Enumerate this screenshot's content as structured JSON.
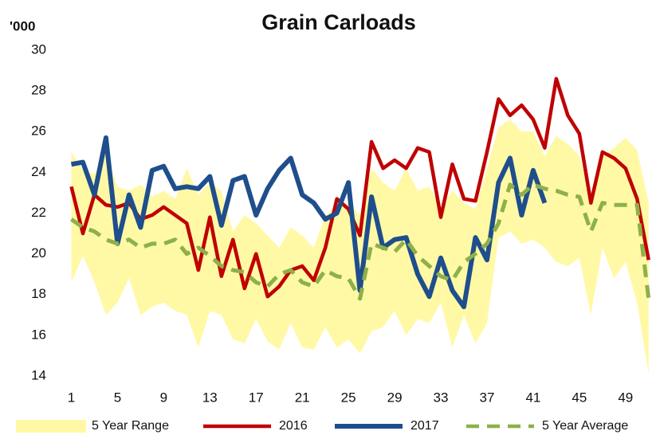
{
  "chart_data": {
    "type": "line",
    "title": "Grain Carloads",
    "y_label": "'000",
    "x": [
      1,
      2,
      3,
      4,
      5,
      6,
      7,
      8,
      9,
      10,
      11,
      12,
      13,
      14,
      15,
      16,
      17,
      18,
      19,
      20,
      21,
      22,
      23,
      24,
      25,
      26,
      27,
      28,
      29,
      30,
      31,
      32,
      33,
      34,
      35,
      36,
      37,
      38,
      39,
      40,
      41,
      42,
      43,
      44,
      45,
      46,
      47,
      48,
      49,
      50,
      51
    ],
    "xlim": [
      0,
      51.5
    ],
    "xticks": [
      1,
      5,
      9,
      13,
      17,
      21,
      25,
      29,
      33,
      37,
      41,
      45,
      49
    ],
    "ylim": [
      14,
      30
    ],
    "yticks": [
      14,
      16,
      18,
      20,
      22,
      24,
      26,
      28,
      30
    ],
    "grid": false,
    "legend": "bottom",
    "series": [
      {
        "name": "5 Year Range",
        "color": "#fff9a6",
        "high": [
          25.0,
          24.1,
          23.9,
          25.0,
          23.3,
          23.1,
          23.4,
          22.8,
          23.1,
          22.7,
          24.2,
          22.9,
          23.5,
          23.1,
          21.1,
          21.9,
          21.5,
          20.9,
          20.3,
          21.3,
          20.9,
          20.3,
          21.9,
          22.3,
          22.5,
          21.9,
          24.2,
          23.5,
          23.1,
          24.2,
          23.1,
          23.3,
          22.3,
          23.1,
          22.5,
          22.2,
          24.2,
          26.2,
          26.6,
          26.0,
          26.0,
          24.8,
          25.8,
          25.4,
          24.8,
          22.7,
          24.8,
          25.2,
          25.7,
          25.1,
          22.5
        ],
        "low": [
          18.6,
          19.9,
          18.6,
          17.0,
          17.6,
          18.8,
          17.0,
          17.4,
          17.6,
          17.2,
          17.0,
          15.4,
          17.2,
          17.0,
          15.8,
          15.6,
          16.8,
          15.7,
          15.3,
          16.6,
          15.4,
          15.3,
          16.4,
          15.4,
          15.8,
          15.1,
          16.2,
          16.4,
          17.2,
          16.0,
          16.8,
          16.6,
          17.6,
          15.4,
          17.0,
          15.6,
          16.6,
          20.8,
          21.1,
          20.5,
          20.7,
          20.3,
          19.6,
          19.4,
          19.8,
          17.0,
          20.3,
          18.8,
          19.6,
          17.6,
          14.1
        ]
      },
      {
        "name": "2016",
        "color": "#c00000",
        "values": [
          23.3,
          21.0,
          22.9,
          22.4,
          22.3,
          22.5,
          21.7,
          21.9,
          22.3,
          21.9,
          21.5,
          19.2,
          21.8,
          18.9,
          20.7,
          18.3,
          20.0,
          17.9,
          18.4,
          19.2,
          19.4,
          18.7,
          20.3,
          22.7,
          22.2,
          20.9,
          25.5,
          24.2,
          24.6,
          24.2,
          25.2,
          25.0,
          21.8,
          24.4,
          22.7,
          22.6,
          25.0,
          27.6,
          26.8,
          27.3,
          26.6,
          25.2,
          28.6,
          26.8,
          25.9,
          22.5,
          25.0,
          24.7,
          24.2,
          22.7,
          19.7
        ]
      },
      {
        "name": "2017",
        "color": "#1f4e8c",
        "values": [
          24.4,
          24.5,
          22.9,
          25.7,
          20.5,
          22.9,
          21.3,
          24.1,
          24.3,
          23.2,
          23.3,
          23.2,
          23.8,
          21.4,
          23.6,
          23.8,
          21.9,
          23.2,
          24.1,
          24.7,
          22.9,
          22.5,
          21.7,
          22.0,
          23.5,
          18.2,
          22.8,
          20.3,
          20.7,
          20.8,
          19.0,
          17.9,
          19.8,
          18.2,
          17.4,
          20.8,
          19.7,
          23.5,
          24.7,
          21.9,
          24.1,
          22.5,
          null,
          null,
          null,
          null,
          null,
          null,
          null,
          null,
          null
        ]
      },
      {
        "name": "5 Year Average",
        "color": "#8db04a",
        "values": [
          21.7,
          21.3,
          21.1,
          20.7,
          20.5,
          20.7,
          20.3,
          20.5,
          20.5,
          20.7,
          20.0,
          20.3,
          19.9,
          19.4,
          19.2,
          19.1,
          18.6,
          18.4,
          19.0,
          19.2,
          18.6,
          18.4,
          19.2,
          18.9,
          18.8,
          17.8,
          20.5,
          20.3,
          20.1,
          20.7,
          19.9,
          19.4,
          18.9,
          18.7,
          19.6,
          20.0,
          20.5,
          21.5,
          23.4,
          22.9,
          23.4,
          23.2,
          23.1,
          22.9,
          22.8,
          21.1,
          22.5,
          22.4,
          22.4,
          22.4,
          17.8
        ]
      }
    ]
  }
}
